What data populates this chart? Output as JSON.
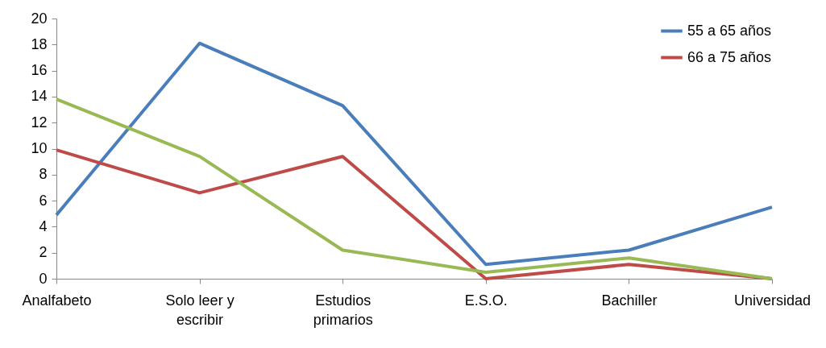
{
  "chart_data": {
    "type": "line",
    "categories": [
      "Analfabeto",
      "Solo leer y escribir",
      "Estudios primarios",
      "E.S.O.",
      "Bachiller",
      "Universidad"
    ],
    "series": [
      {
        "name": "55 a 65 años",
        "color": "#4a7ebb",
        "values": [
          4.9,
          18.1,
          13.3,
          1.1,
          2.2,
          5.5
        ]
      },
      {
        "name": "66 a 75 años",
        "color": "#be4b48",
        "values": [
          9.9,
          6.6,
          9.4,
          0,
          1.1,
          0
        ]
      },
      {
        "color": "#98b954",
        "values": [
          13.8,
          9.4,
          2.2,
          0.5,
          1.6,
          0
        ]
      }
    ],
    "ylim": [
      0,
      20
    ],
    "yticks": [
      0,
      2,
      4,
      6,
      8,
      10,
      12,
      14,
      16,
      18,
      20
    ],
    "grid": false,
    "legend": "top right",
    "marker": "none",
    "line_style": "solid"
  }
}
